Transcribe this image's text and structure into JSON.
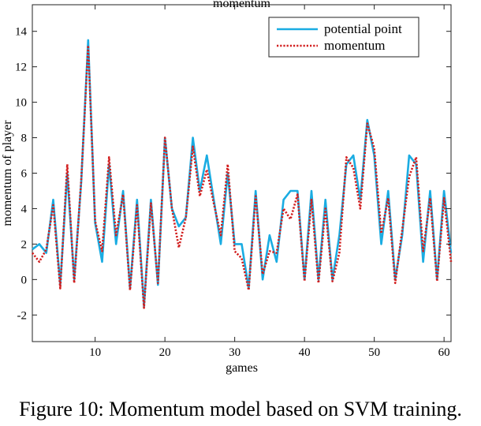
{
  "caption": "Figure 10: Momentum model based on SVM training.",
  "chart_data": {
    "type": "line",
    "title": "momentum",
    "xlabel": "games",
    "ylabel": "momentum of player",
    "xlim": [
      1,
      61
    ],
    "ylim": [
      -3.5,
      15.5
    ],
    "xticks": [
      10,
      20,
      30,
      40,
      50,
      60
    ],
    "yticks": [
      -2,
      0,
      2,
      4,
      6,
      8,
      10,
      12,
      14
    ],
    "grid": false,
    "legend_position": "top-right",
    "x": [
      1,
      2,
      3,
      4,
      5,
      6,
      7,
      8,
      9,
      10,
      11,
      12,
      13,
      14,
      15,
      16,
      17,
      18,
      19,
      20,
      21,
      22,
      23,
      24,
      25,
      26,
      27,
      28,
      29,
      30,
      31,
      32,
      33,
      34,
      35,
      36,
      37,
      38,
      39,
      40,
      41,
      42,
      43,
      44,
      45,
      46,
      47,
      48,
      49,
      50,
      51,
      52,
      53,
      54,
      55,
      56,
      57,
      58,
      59,
      60,
      61
    ],
    "series": [
      {
        "name": "potential point",
        "color": "#1aace2",
        "style": "solid",
        "values": [
          1.7,
          2.0,
          1.5,
          4.5,
          -0.3,
          6.0,
          0.0,
          5.5,
          13.5,
          3.2,
          1.0,
          6.5,
          2.0,
          5.0,
          -0.5,
          4.5,
          -1.5,
          4.5,
          -0.3,
          8.0,
          4.0,
          3.0,
          3.5,
          8.0,
          5.0,
          7.0,
          4.5,
          2.0,
          6.0,
          2.0,
          2.0,
          -0.5,
          5.0,
          0.0,
          2.5,
          1.0,
          4.5,
          5.0,
          5.0,
          0.0,
          5.0,
          0.0,
          4.5,
          0.0,
          2.5,
          6.5,
          7.0,
          4.5,
          9.0,
          7.0,
          2.0,
          5.0,
          0.0,
          2.5,
          7.0,
          6.5,
          1.0,
          5.0,
          0.0,
          5.0,
          1.5
        ]
      },
      {
        "name": "momentum",
        "color": "#d21e1e",
        "style": "dotted",
        "values": [
          1.5,
          1.0,
          1.7,
          4.2,
          -0.5,
          6.5,
          -0.2,
          5.6,
          13.2,
          3.3,
          1.6,
          6.9,
          2.5,
          4.8,
          -0.6,
          4.2,
          -1.6,
          4.3,
          -0.2,
          8.0,
          4.0,
          1.8,
          3.5,
          7.5,
          4.7,
          6.2,
          4.3,
          2.5,
          6.5,
          1.6,
          1.2,
          -0.6,
          4.7,
          0.3,
          1.6,
          1.5,
          4.0,
          3.4,
          4.8,
          -0.1,
          4.5,
          -0.2,
          4.0,
          -0.1,
          1.5,
          6.9,
          6.3,
          4.0,
          8.8,
          7.4,
          2.6,
          4.6,
          -0.2,
          2.8,
          5.8,
          6.9,
          1.6,
          4.6,
          -0.1,
          4.6,
          1.0
        ]
      }
    ]
  }
}
